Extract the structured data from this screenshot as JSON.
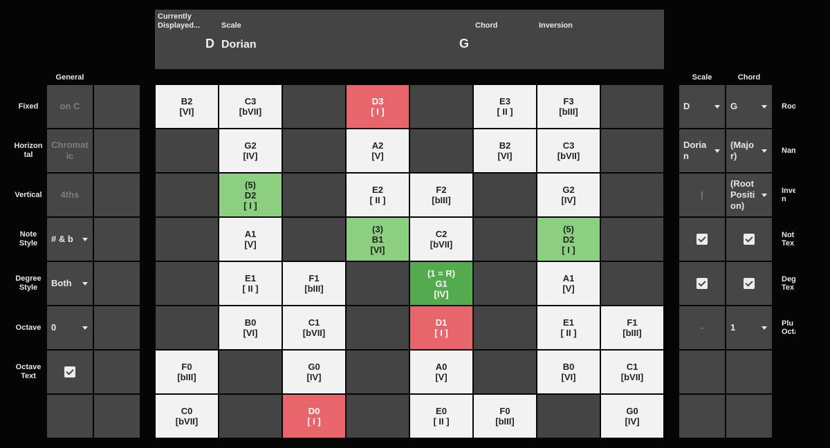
{
  "header": {
    "currently_label": "Currently\nDisplayed...",
    "scale_label": "Scale",
    "chord_label": "Chord",
    "inversion_label": "Inversion",
    "root_note": "D",
    "scale_name": "Dorian",
    "chord_root": "G"
  },
  "general": {
    "title": "General",
    "rows": [
      {
        "label": "Fixed",
        "value": "on C",
        "kind": "dim"
      },
      {
        "label": "Horizon\ntal",
        "value": "Chromat\nic",
        "kind": "dim"
      },
      {
        "label": "Vertical",
        "value": "4ths",
        "kind": "dim"
      },
      {
        "label": "Note\nStyle",
        "value": "# & b",
        "kind": "select"
      },
      {
        "label": "Degree\nStyle",
        "value": "Both",
        "kind": "select"
      },
      {
        "label": "Octave",
        "value": "0",
        "kind": "select"
      },
      {
        "label": "Octave\nText",
        "value": "",
        "kind": "check"
      },
      {
        "label": "",
        "value": "",
        "kind": "empty"
      }
    ]
  },
  "right_panel": {
    "scale_title": "Scale",
    "chord_title": "Chord",
    "rows": [
      {
        "scale": {
          "value": "D",
          "kind": "select"
        },
        "chord": {
          "value": "G",
          "kind": "select"
        },
        "label": "Roo"
      },
      {
        "scale": {
          "value": "Doria\nn",
          "kind": "select"
        },
        "chord": {
          "value": "(Majo\nr)",
          "kind": "select"
        },
        "label": "Nam"
      },
      {
        "scale": {
          "value": "|",
          "kind": "dim"
        },
        "chord": {
          "value": "(Root\nPositi\non)",
          "kind": "select"
        },
        "label": "Inver\nn"
      },
      {
        "scale": {
          "value": "",
          "kind": "check"
        },
        "chord": {
          "value": "",
          "kind": "check"
        },
        "label": "Not\nTex"
      },
      {
        "scale": {
          "value": "",
          "kind": "check"
        },
        "chord": {
          "value": "",
          "kind": "check"
        },
        "label": "Degr\nTex"
      },
      {
        "scale": {
          "value": "-",
          "kind": "dim"
        },
        "chord": {
          "value": "1",
          "kind": "select"
        },
        "label": "Plu\nOcta"
      },
      {
        "scale": {
          "value": "",
          "kind": "empty"
        },
        "chord": {
          "value": "",
          "kind": "empty"
        },
        "label": ""
      },
      {
        "scale": {
          "value": "",
          "kind": "empty"
        },
        "chord": {
          "value": "",
          "kind": "empty"
        },
        "label": ""
      }
    ]
  },
  "grid": [
    [
      {
        "t": "B2\n[VI]",
        "c": "white"
      },
      {
        "t": "C3\n[bVII]",
        "c": "white"
      },
      {
        "t": "",
        "c": "dark"
      },
      {
        "t": "D3\n[ I ]",
        "c": "red"
      },
      {
        "t": "",
        "c": "dark"
      },
      {
        "t": "E3\n[ II ]",
        "c": "white"
      },
      {
        "t": "F3\n[bIII]",
        "c": "white"
      },
      {
        "t": "",
        "c": "dark"
      }
    ],
    [
      {
        "t": "",
        "c": "dark"
      },
      {
        "t": "G2\n[IV]",
        "c": "white"
      },
      {
        "t": "",
        "c": "dark"
      },
      {
        "t": "A2\n[V]",
        "c": "white"
      },
      {
        "t": "",
        "c": "dark"
      },
      {
        "t": "B2\n[VI]",
        "c": "white"
      },
      {
        "t": "C3\n[bVII]",
        "c": "white"
      },
      {
        "t": "",
        "c": "dark"
      }
    ],
    [
      {
        "t": "",
        "c": "dark"
      },
      {
        "t": "(5)\nD2\n[ I ]",
        "c": "green"
      },
      {
        "t": "",
        "c": "dark"
      },
      {
        "t": "E2\n[ II ]",
        "c": "white"
      },
      {
        "t": "F2\n[bIII]",
        "c": "white"
      },
      {
        "t": "",
        "c": "dark"
      },
      {
        "t": "G2\n[IV]",
        "c": "white"
      },
      {
        "t": "",
        "c": "dark"
      }
    ],
    [
      {
        "t": "",
        "c": "dark"
      },
      {
        "t": "A1\n[V]",
        "c": "white"
      },
      {
        "t": "",
        "c": "dark"
      },
      {
        "t": "(3)\nB1\n[VI]",
        "c": "green"
      },
      {
        "t": "C2\n[bVII]",
        "c": "white"
      },
      {
        "t": "",
        "c": "dark"
      },
      {
        "t": "(5)\nD2\n[ I ]",
        "c": "green"
      },
      {
        "t": "",
        "c": "dark"
      }
    ],
    [
      {
        "t": "",
        "c": "dark"
      },
      {
        "t": "E1\n[ II ]",
        "c": "white"
      },
      {
        "t": "F1\n[bIII]",
        "c": "white"
      },
      {
        "t": "",
        "c": "dark"
      },
      {
        "t": "(1 = R)\nG1\n[IV]",
        "c": "dgreen"
      },
      {
        "t": "",
        "c": "dark"
      },
      {
        "t": "A1\n[V]",
        "c": "white"
      },
      {
        "t": "",
        "c": "dark"
      }
    ],
    [
      {
        "t": "",
        "c": "dark"
      },
      {
        "t": "B0\n[VI]",
        "c": "white"
      },
      {
        "t": "C1\n[bVII]",
        "c": "white"
      },
      {
        "t": "",
        "c": "dark"
      },
      {
        "t": "D1\n[ I ]",
        "c": "red"
      },
      {
        "t": "",
        "c": "dark"
      },
      {
        "t": "E1\n[ II ]",
        "c": "white"
      },
      {
        "t": "F1\n[bIII]",
        "c": "white"
      }
    ],
    [
      {
        "t": "F0\n[bIII]",
        "c": "white"
      },
      {
        "t": "",
        "c": "dark"
      },
      {
        "t": "G0\n[IV]",
        "c": "white"
      },
      {
        "t": "",
        "c": "dark"
      },
      {
        "t": "A0\n[V]",
        "c": "white"
      },
      {
        "t": "",
        "c": "dark"
      },
      {
        "t": "B0\n[VI]",
        "c": "white"
      },
      {
        "t": "C1\n[bVII]",
        "c": "white"
      }
    ],
    [
      {
        "t": "C0\n[bVII]",
        "c": "white"
      },
      {
        "t": "",
        "c": "dark"
      },
      {
        "t": "D0\n[ I ]",
        "c": "red"
      },
      {
        "t": "",
        "c": "dark"
      },
      {
        "t": "E0\n[ II ]",
        "c": "white"
      },
      {
        "t": "F0\n[bIII]",
        "c": "white"
      },
      {
        "t": "",
        "c": "dark"
      },
      {
        "t": "G0\n[IV]",
        "c": "white"
      }
    ]
  ]
}
